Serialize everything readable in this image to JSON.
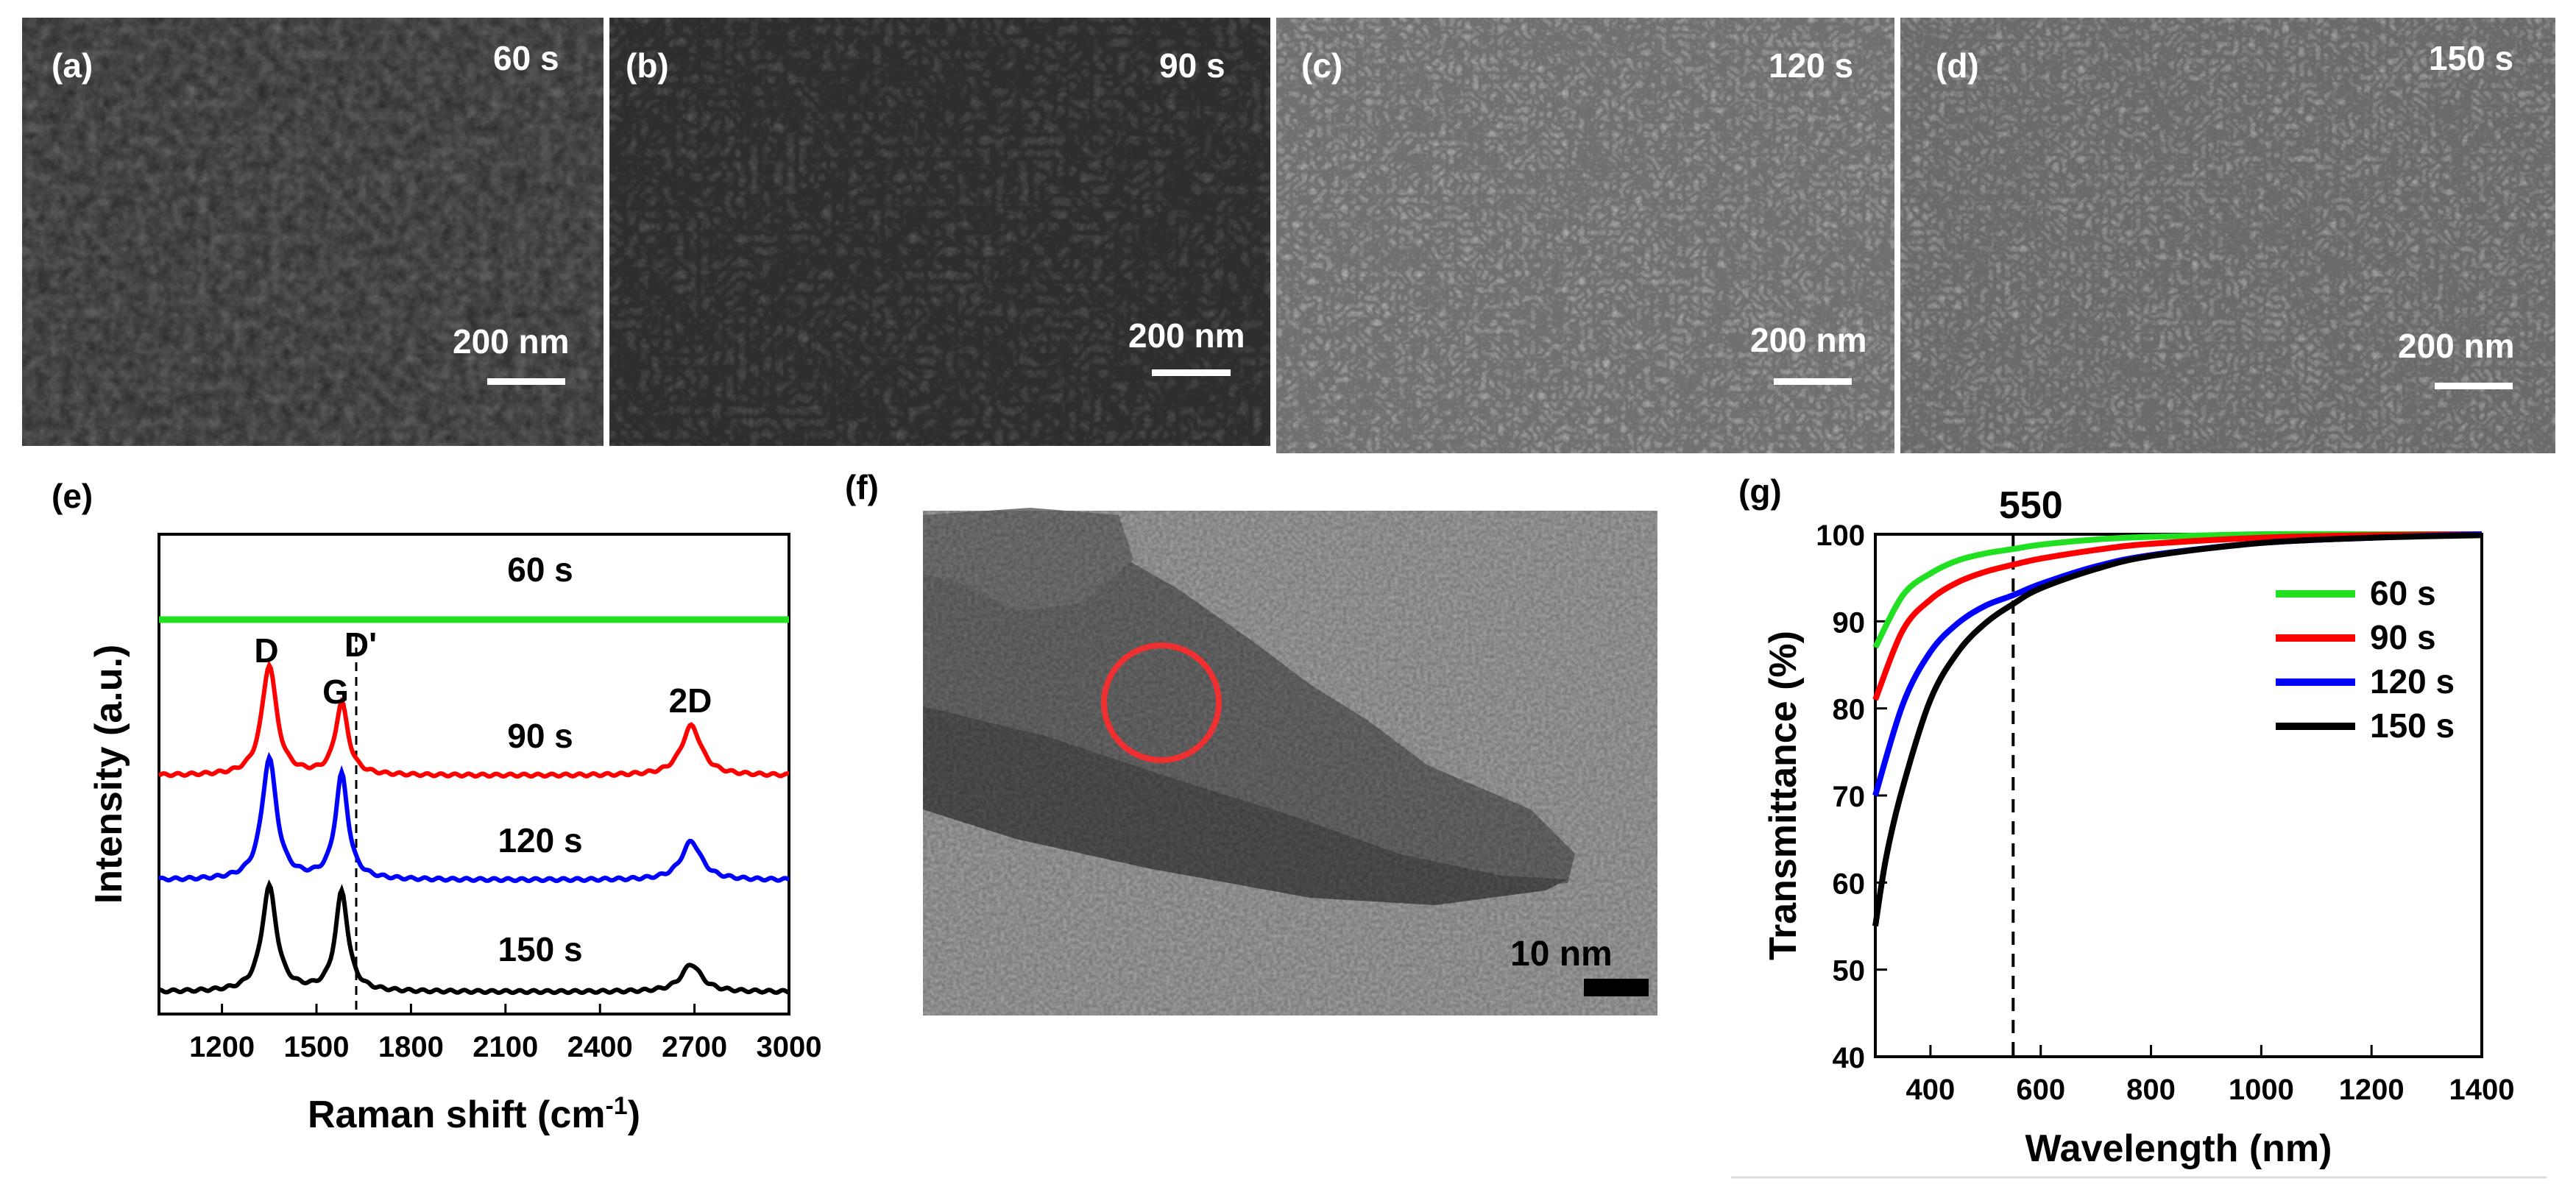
{
  "panels": {
    "a": {
      "label": "(a)",
      "time": "60 s",
      "scale": "200 nm"
    },
    "b": {
      "label": "(b)",
      "time": "90 s",
      "scale": "200 nm"
    },
    "c": {
      "label": "(c)",
      "time": "120 s",
      "scale": "200 nm"
    },
    "d": {
      "label": "(d)",
      "time": "150 s",
      "scale": "200 nm"
    },
    "e": {
      "label": "(e)"
    },
    "f": {
      "label": "(f)",
      "scale": "10 nm"
    },
    "g": {
      "label": "(g)"
    }
  },
  "sem_tone": {
    "a": "#5e5e5e",
    "b": "#2e2e2e",
    "c": "#707070",
    "d": "#6a6a6a"
  },
  "chart_data": [
    {
      "type": "line",
      "panel": "e",
      "xlabel": "Raman shift (cm",
      "xlabel_sup": "-1",
      "xlabel_close": ")",
      "ylabel": "Intensity (a.u.)",
      "xlim": [
        1000,
        3000
      ],
      "xticks": [
        1200,
        1500,
        1800,
        2100,
        2400,
        2700,
        3000
      ],
      "peaks": {
        "D": 1350,
        "G": 1580,
        "D'": 1620,
        "2D": 2690
      },
      "peak_labels": [
        "D",
        "G",
        "D'",
        "2D"
      ],
      "series": [
        {
          "name": "60 s",
          "color": "#21e021",
          "shape": "flat",
          "D": 0,
          "G": 0,
          "2D": 0
        },
        {
          "name": "90 s",
          "color": "#ff0000",
          "D": 1.0,
          "G": 0.65,
          "2D": 0.45
        },
        {
          "name": "120 s",
          "color": "#0000ff",
          "D": 1.1,
          "G": 0.95,
          "2D": 0.35
        },
        {
          "name": "150 s",
          "color": "#000000",
          "D": 0.95,
          "G": 0.9,
          "2D": 0.25
        }
      ]
    },
    {
      "type": "line",
      "panel": "g",
      "xlabel": "Wavelength (nm)",
      "ylabel": "Transmittance (%)",
      "xlim": [
        300,
        1400
      ],
      "ylim": [
        40,
        100
      ],
      "xticks": [
        400,
        600,
        800,
        1000,
        1200,
        1400
      ],
      "yticks": [
        40,
        50,
        60,
        70,
        80,
        90,
        100
      ],
      "marker_x": 550,
      "marker_label": "550",
      "series": [
        {
          "name": "60 s",
          "color": "#21e021",
          "x": [
            300,
            350,
            400,
            450,
            500,
            550,
            600,
            700,
            800,
            1000,
            1200,
            1400
          ],
          "y": [
            87,
            93,
            95.5,
            97,
            97.8,
            98.3,
            98.8,
            99.4,
            99.7,
            100,
            100,
            100
          ]
        },
        {
          "name": "90 s",
          "color": "#ff0000",
          "x": [
            300,
            350,
            400,
            450,
            500,
            550,
            600,
            700,
            800,
            1000,
            1200,
            1400
          ],
          "y": [
            81,
            89,
            92.5,
            94.5,
            95.7,
            96.5,
            97.2,
            98.2,
            98.9,
            99.6,
            99.9,
            100
          ]
        },
        {
          "name": "120 s",
          "color": "#0000ff",
          "x": [
            300,
            350,
            400,
            450,
            500,
            550,
            600,
            700,
            800,
            1000,
            1200,
            1400
          ],
          "y": [
            70,
            80.5,
            86.5,
            89.8,
            91.8,
            93,
            94.3,
            96.3,
            97.6,
            99,
            99.6,
            100
          ]
        },
        {
          "name": "150 s",
          "color": "#000000",
          "x": [
            300,
            320,
            350,
            400,
            450,
            500,
            550,
            600,
            700,
            800,
            1000,
            1200,
            1400
          ],
          "y": [
            55,
            63,
            71,
            81,
            86.5,
            89.8,
            92,
            93.8,
            96,
            97.5,
            99,
            99.6,
            99.9
          ]
        }
      ]
    }
  ]
}
